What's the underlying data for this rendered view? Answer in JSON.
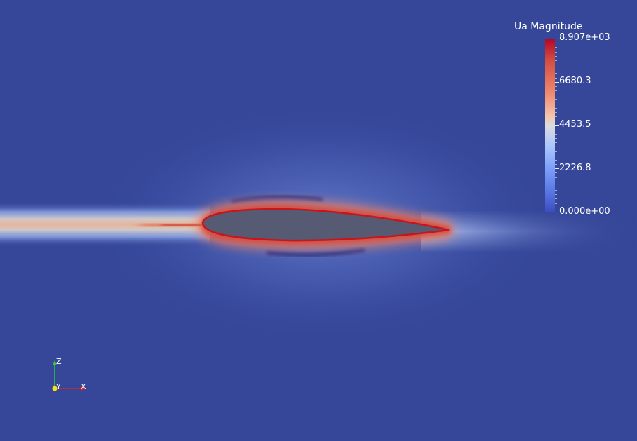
{
  "colorbar": {
    "title": "Ua Magnitude",
    "labels": [
      "8.907e+03",
      "6680.3",
      "4453.5",
      "2226.8",
      "0.000e+00"
    ],
    "max": 8907,
    "min": 0,
    "colormap": "cool-to-warm",
    "colors": {
      "low": "#3b4cc0",
      "mid": "#dddddd",
      "high": "#b40426"
    }
  },
  "orientation_axes": {
    "z_label": "Z",
    "y_label": "Y",
    "x_label": "X",
    "colors": {
      "z": "#2ecc40",
      "y": "#f5e21a",
      "x": "#d7261e"
    }
  },
  "scene": {
    "background_color": "#36479a",
    "airfoil_fill": "#565a72",
    "airfoil_edge": "#c8151b"
  }
}
